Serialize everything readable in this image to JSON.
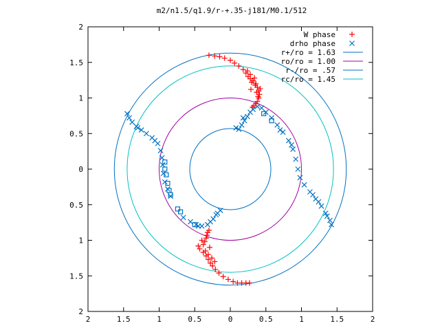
{
  "chart_data": {
    "type": "scatter",
    "title": "m2/n1.5/q1.9/r-+.35-j181/M0.1/512",
    "xlim": [
      -2,
      2
    ],
    "ylim": [
      -2,
      2
    ],
    "xticks": [
      "2",
      "1.5",
      "1",
      "0.5",
      "0",
      "0.5",
      "1",
      "1.5",
      "2"
    ],
    "yticks": [
      "2",
      "1.5",
      "1",
      "0.5",
      "0",
      "0.5",
      "1",
      "1.5",
      "2"
    ],
    "xtick_values": [
      -2,
      -1.5,
      -1,
      -0.5,
      0,
      0.5,
      1,
      1.5,
      2
    ],
    "ytick_values": [
      2,
      1.5,
      1,
      0.5,
      0,
      -0.5,
      -1,
      -1.5,
      -2
    ],
    "grid": false,
    "legend_position": "top-right",
    "series": [
      {
        "name": "W phase",
        "marker": "plus",
        "color": "#ff0000",
        "points": [
          [
            -0.3,
            1.6
          ],
          [
            -0.22,
            1.59
          ],
          [
            -0.15,
            1.58
          ],
          [
            -0.08,
            1.56
          ],
          [
            0.0,
            1.53
          ],
          [
            0.06,
            1.49
          ],
          [
            0.12,
            1.45
          ],
          [
            0.18,
            1.4
          ],
          [
            0.22,
            1.35
          ],
          [
            0.25,
            1.3
          ],
          [
            0.28,
            1.27
          ],
          [
            0.32,
            1.24
          ],
          [
            0.36,
            1.2
          ],
          [
            0.38,
            1.15
          ],
          [
            0.4,
            1.1
          ],
          [
            0.41,
            1.05
          ],
          [
            0.4,
            1.0
          ],
          [
            0.38,
            0.95
          ],
          [
            0.36,
            0.92
          ],
          [
            0.33,
            0.89
          ],
          [
            0.31,
            0.87
          ],
          [
            0.29,
            1.12
          ],
          [
            0.35,
            1.18
          ],
          [
            0.3,
            1.22
          ],
          [
            0.42,
            1.13
          ],
          [
            0.37,
            1.08
          ],
          [
            0.28,
            1.33
          ],
          [
            0.34,
            1.28
          ],
          [
            0.24,
            1.38
          ],
          [
            0.39,
            1.02
          ],
          [
            0.1,
            -1.6
          ],
          [
            0.16,
            -1.6
          ],
          [
            0.22,
            -1.6
          ],
          [
            0.27,
            -1.6
          ],
          [
            0.04,
            -1.58
          ],
          [
            -0.03,
            -1.55
          ],
          [
            -0.1,
            -1.51
          ],
          [
            -0.16,
            -1.46
          ],
          [
            -0.21,
            -1.41
          ],
          [
            -0.25,
            -1.36
          ],
          [
            -0.28,
            -1.32
          ],
          [
            -0.31,
            -1.27
          ],
          [
            -0.34,
            -1.22
          ],
          [
            -0.38,
            -1.17
          ],
          [
            -0.43,
            -1.12
          ],
          [
            -0.38,
            -1.06
          ],
          [
            -0.36,
            -1.02
          ],
          [
            -0.34,
            -0.97
          ],
          [
            -0.33,
            -0.93
          ],
          [
            -0.32,
            -0.89
          ],
          [
            -0.3,
            -0.86
          ],
          [
            -0.29,
            -1.1
          ],
          [
            -0.35,
            -1.15
          ],
          [
            -0.26,
            -1.25
          ],
          [
            -0.4,
            -1.0
          ],
          [
            -0.22,
            -1.3
          ],
          [
            -0.45,
            -1.08
          ],
          [
            -0.31,
            -1.2
          ]
        ]
      },
      {
        "name": "drho phase",
        "marker": "x",
        "color": "#0070c0",
        "points": [
          [
            0.12,
            0.56
          ],
          [
            0.16,
            0.62
          ],
          [
            0.2,
            0.68
          ],
          [
            0.24,
            0.74
          ],
          [
            0.28,
            0.8
          ],
          [
            0.32,
            0.84
          ],
          [
            0.38,
            0.88
          ],
          [
            0.44,
            0.86
          ],
          [
            0.5,
            0.8
          ],
          [
            0.58,
            0.72
          ],
          [
            0.66,
            0.62
          ],
          [
            0.74,
            0.52
          ],
          [
            0.82,
            0.4
          ],
          [
            0.88,
            0.28
          ],
          [
            0.92,
            0.14
          ],
          [
            0.95,
            0.0
          ],
          [
            0.98,
            -0.12
          ],
          [
            1.04,
            -0.22
          ],
          [
            1.12,
            -0.32
          ],
          [
            1.2,
            -0.42
          ],
          [
            1.28,
            -0.52
          ],
          [
            1.34,
            -0.62
          ],
          [
            1.4,
            -0.72
          ],
          [
            1.42,
            -0.78
          ],
          [
            0.7,
            0.55
          ],
          [
            0.86,
            0.34
          ],
          [
            1.16,
            -0.36
          ],
          [
            1.24,
            -0.46
          ],
          [
            1.36,
            -0.66
          ],
          [
            0.08,
            0.58
          ],
          [
            0.18,
            0.72
          ],
          [
            -1.45,
            0.78
          ],
          [
            -1.42,
            0.72
          ],
          [
            -1.38,
            0.66
          ],
          [
            -1.32,
            0.6
          ],
          [
            -1.25,
            0.55
          ],
          [
            -1.18,
            0.5
          ],
          [
            -1.1,
            0.44
          ],
          [
            -1.02,
            0.36
          ],
          [
            -0.98,
            0.26
          ],
          [
            -0.96,
            0.16
          ],
          [
            -0.95,
            0.06
          ],
          [
            -0.94,
            -0.06
          ],
          [
            -0.92,
            -0.18
          ],
          [
            -0.88,
            -0.28
          ],
          [
            -0.84,
            -0.38
          ],
          [
            -0.66,
            -0.68
          ],
          [
            -0.56,
            -0.74
          ],
          [
            -0.48,
            -0.78
          ],
          [
            -0.4,
            -0.8
          ],
          [
            -0.32,
            -0.78
          ],
          [
            -0.24,
            -0.7
          ],
          [
            -0.18,
            -0.62
          ],
          [
            -0.14,
            -0.58
          ],
          [
            -1.3,
            0.58
          ],
          [
            -1.06,
            0.4
          ],
          [
            -0.45,
            -0.8
          ],
          [
            -0.28,
            -0.74
          ],
          [
            -0.2,
            -0.64
          ]
        ]
      },
      {
        "name": "r+/ro = 1.63",
        "type": "circle",
        "radius": 1.63,
        "color": "#0070c0"
      },
      {
        "name": "ro/ro = 1.00",
        "type": "circle",
        "radius": 1.0,
        "color": "#a000a0"
      },
      {
        "name": "r-/ro = .57",
        "type": "circle",
        "radius": 0.57,
        "color": "#0070c0"
      },
      {
        "name": "rc/ro = 1.45",
        "type": "circle",
        "radius": 1.45,
        "color": "#00c0c0"
      }
    ],
    "square_markers": {
      "color": "#0070c0",
      "points": [
        [
          0.47,
          0.78
        ],
        [
          0.58,
          0.68
        ],
        [
          -0.92,
          0.1
        ],
        [
          -0.92,
          0.0
        ],
        [
          -0.9,
          -0.08
        ],
        [
          -0.88,
          -0.2
        ],
        [
          -0.86,
          -0.3
        ],
        [
          -0.84,
          -0.36
        ],
        [
          -0.74,
          -0.56
        ],
        [
          -0.7,
          -0.6
        ],
        [
          -0.5,
          -0.78
        ]
      ]
    }
  }
}
